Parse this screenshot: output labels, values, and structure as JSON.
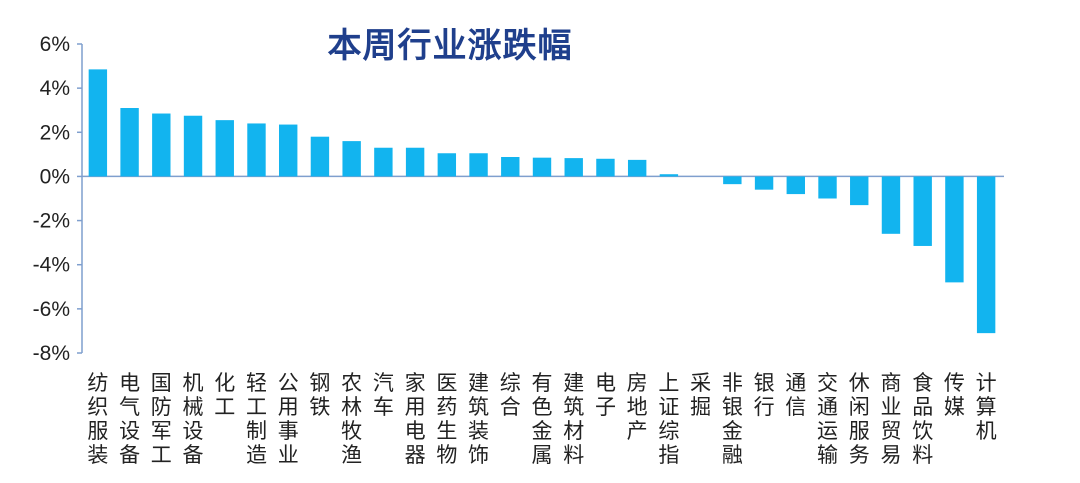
{
  "chart_data": {
    "type": "bar",
    "title": "本周行业涨跌幅",
    "xlabel": "",
    "ylabel": "",
    "ylim": [
      -8,
      6
    ],
    "yticks": [
      6,
      4,
      2,
      0,
      -2,
      -4,
      -6,
      -8
    ],
    "ytick_labels": [
      "6%",
      "4%",
      "2%",
      "0%",
      "-2%",
      "-4%",
      "-6%",
      "-8%"
    ],
    "grid": false,
    "bar_color": "#12b4ef",
    "categories": [
      "纺织服装",
      "电气设备",
      "国防军工",
      "机械设备",
      "化工",
      "轻工制造",
      "公用事业",
      "钢铁",
      "农林牧渔",
      "汽车",
      "家用电器",
      "医药生物",
      "建筑装饰",
      "综合",
      "有色金属",
      "建筑材料",
      "电子",
      "房地产",
      "上证综指",
      "采掘",
      "非银金融",
      "银行",
      "通信",
      "交通运输",
      "休闲服务",
      "商业贸易",
      "食品饮料",
      "传媒",
      "计算机"
    ],
    "values": [
      4.85,
      3.1,
      2.85,
      2.75,
      2.55,
      2.4,
      2.35,
      1.8,
      1.6,
      1.3,
      1.3,
      1.05,
      1.05,
      0.88,
      0.85,
      0.83,
      0.8,
      0.75,
      0.1,
      0.0,
      -0.35,
      -0.6,
      -0.8,
      -1.0,
      -1.3,
      -2.6,
      -3.15,
      -4.8,
      -7.1
    ]
  }
}
